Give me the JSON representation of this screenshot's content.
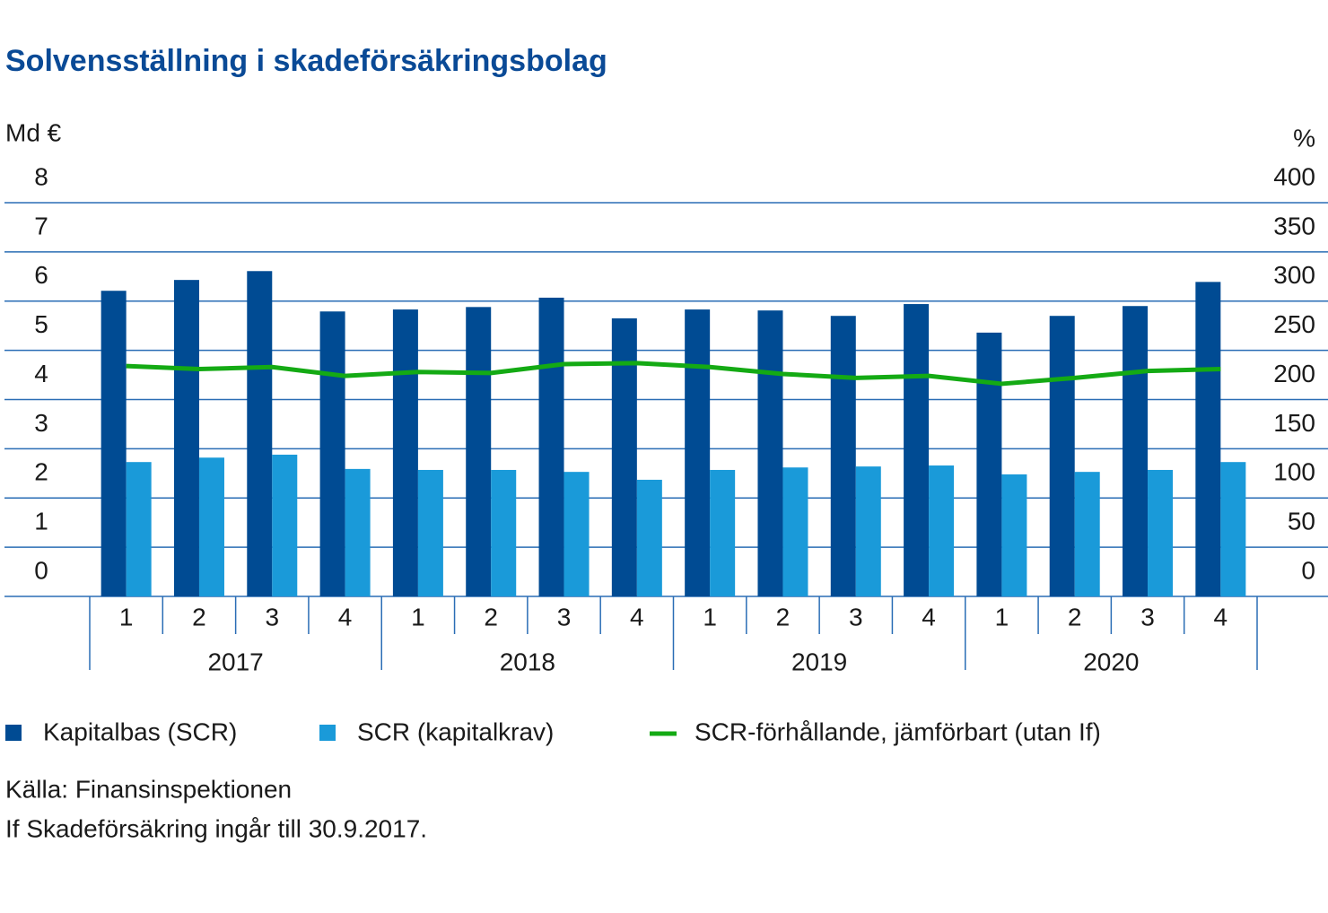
{
  "chart_data": {
    "type": "bar_line",
    "title": "Solvensställning i skadeförsäkringsbolag",
    "y_axis_label": "Md €",
    "y2_axis_label": "%",
    "categories": [
      "1",
      "2",
      "3",
      "4",
      "1",
      "2",
      "3",
      "4",
      "1",
      "2",
      "3",
      "4",
      "1",
      "2",
      "3",
      "4"
    ],
    "year_groups": [
      "2017",
      "2018",
      "2019",
      "2020"
    ],
    "ylim": [
      0,
      8
    ],
    "yticks": [
      0,
      1,
      2,
      3,
      4,
      5,
      6,
      7,
      8
    ],
    "y2lim": [
      0,
      400
    ],
    "y2ticks": [
      0,
      50,
      100,
      150,
      200,
      250,
      300,
      350,
      400
    ],
    "grid": true,
    "series": [
      {
        "name": "Kapitalbas (SCR)",
        "type": "bar",
        "color": "#004b93",
        "values": [
          6.21,
          6.43,
          6.61,
          5.79,
          5.83,
          5.88,
          6.07,
          5.65,
          5.83,
          5.81,
          5.7,
          5.94,
          5.36,
          5.7,
          5.9,
          6.39
        ]
      },
      {
        "name": "SCR (kapitalkrav)",
        "type": "bar",
        "color": "#1a9ad9",
        "values": [
          2.73,
          2.82,
          2.88,
          2.59,
          2.57,
          2.57,
          2.53,
          2.37,
          2.57,
          2.62,
          2.64,
          2.66,
          2.48,
          2.53,
          2.57,
          2.73
        ]
      },
      {
        "name": "SCR-förhållande, jämförbart (utan If)",
        "type": "line",
        "axis": "y2",
        "color": "#14aa14",
        "values": [
          234,
          231,
          233,
          224,
          228,
          227,
          236,
          237,
          233,
          226,
          222,
          224,
          216,
          222,
          229,
          231
        ]
      }
    ],
    "notes": [
      "Källa: Finansinspektionen",
      "If Skadeförsäkring ingår till 30.9.2017."
    ]
  }
}
